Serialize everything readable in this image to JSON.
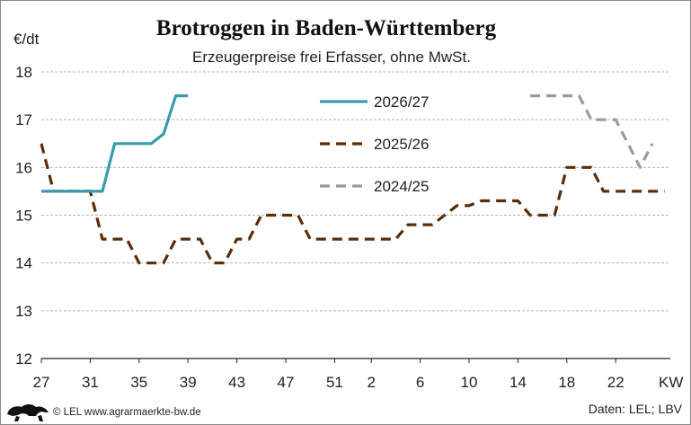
{
  "chart_data": {
    "type": "line",
    "title": "Brotroggen in Baden-Württemberg",
    "subtitle": "Erzeugerpreise frei Erfasser, ohne MwSt.",
    "ylabel": "€/dt",
    "xlabel": "KW",
    "ylim": [
      12,
      18
    ],
    "yticks": [
      "12",
      "13",
      "14",
      "15",
      "16",
      "17",
      "18"
    ],
    "xticks": [
      "27",
      "31",
      "35",
      "39",
      "43",
      "47",
      "51",
      "2",
      "6",
      "10",
      "14",
      "18",
      "22"
    ],
    "grid": true,
    "legend_position": "top-center",
    "source": "Daten: LEL; LBV",
    "copyright": "© LEL www.agrarmaerkte-bw.de",
    "series": [
      {
        "name": "2026/27",
        "color": "#3a9aac",
        "dash": "solid",
        "points": [
          [
            27,
            15.5
          ],
          [
            28,
            15.5
          ],
          [
            29,
            15.5
          ],
          [
            30,
            15.5
          ],
          [
            31,
            15.5
          ],
          [
            32,
            15.5
          ],
          [
            33,
            16.5
          ],
          [
            34,
            16.5
          ],
          [
            35,
            16.5
          ],
          [
            36,
            16.5
          ],
          [
            37,
            16.7
          ],
          [
            38,
            17.5
          ],
          [
            39,
            17.5
          ]
        ]
      },
      {
        "name": "2025/26",
        "color": "#5a2d08",
        "dash": "dashed",
        "points": [
          [
            27,
            16.5
          ],
          [
            28,
            15.5
          ],
          [
            29,
            15.5
          ],
          [
            30,
            15.5
          ],
          [
            31,
            15.5
          ],
          [
            32,
            14.5
          ],
          [
            33,
            14.5
          ],
          [
            34,
            14.5
          ],
          [
            35,
            14.0
          ],
          [
            36,
            14.0
          ],
          [
            37,
            14.0
          ],
          [
            38,
            14.5
          ],
          [
            39,
            14.5
          ],
          [
            40,
            14.5
          ],
          [
            41,
            14.0
          ],
          [
            42,
            14.0
          ],
          [
            43,
            14.5
          ],
          [
            44,
            14.5
          ],
          [
            45,
            15.0
          ],
          [
            46,
            15.0
          ],
          [
            47,
            15.0
          ],
          [
            48,
            15.0
          ],
          [
            49,
            14.5
          ],
          [
            50,
            14.5
          ],
          [
            51,
            14.5
          ],
          [
            52,
            14.5
          ],
          [
            1,
            14.5
          ],
          [
            2,
            14.5
          ],
          [
            3,
            14.5
          ],
          [
            4,
            14.5
          ],
          [
            5,
            14.8
          ],
          [
            6,
            14.8
          ],
          [
            7,
            14.8
          ],
          [
            8,
            15.0
          ],
          [
            9,
            15.2
          ],
          [
            10,
            15.2
          ],
          [
            11,
            15.3
          ],
          [
            12,
            15.3
          ],
          [
            13,
            15.3
          ],
          [
            14,
            15.3
          ],
          [
            15,
            15.0
          ],
          [
            16,
            15.0
          ],
          [
            17,
            15.0
          ],
          [
            18,
            16.0
          ],
          [
            19,
            16.0
          ],
          [
            20,
            16.0
          ],
          [
            21,
            15.5
          ],
          [
            22,
            15.5
          ],
          [
            23,
            15.5
          ],
          [
            24,
            15.5
          ],
          [
            25,
            15.5
          ],
          [
            26,
            15.5
          ]
        ]
      },
      {
        "name": "2024/25",
        "color": "#9a9a9a",
        "dash": "dashed",
        "points": [
          [
            15,
            17.5
          ],
          [
            16,
            17.5
          ],
          [
            17,
            17.5
          ],
          [
            18,
            17.5
          ],
          [
            19,
            17.5
          ],
          [
            20,
            17.0
          ],
          [
            21,
            17.0
          ],
          [
            22,
            17.0
          ],
          [
            23,
            16.5
          ],
          [
            24,
            16.0
          ],
          [
            25,
            16.5
          ]
        ]
      }
    ]
  }
}
